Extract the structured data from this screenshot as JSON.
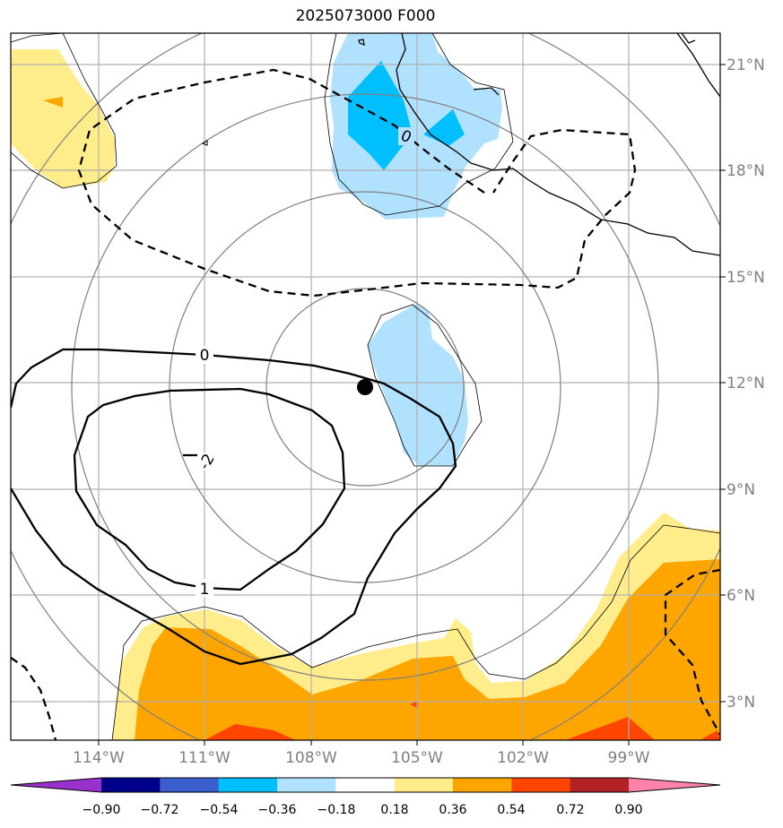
{
  "title": "2025073000 F000",
  "lat_labels": [
    "21°N",
    "18°N",
    "15°N",
    "12°N",
    "9°N",
    "6°N",
    "3°N"
  ],
  "lon_labels": [
    "114°W",
    "111°W",
    "108°W",
    "105°W",
    "102°W",
    "99°W"
  ],
  "contour_labels": [
    "0",
    "0",
    "-2",
    "1"
  ],
  "colorbar": {
    "ticks": [
      "−0.90",
      "−0.72",
      "−0.54",
      "−0.36",
      "−0.18",
      "0.18",
      "0.36",
      "0.54",
      "0.72",
      "0.90"
    ],
    "colors": [
      "#9932cc",
      "#00008b",
      "#3a5fcd",
      "#00bfff",
      "#b0e2ff",
      "#ffffff",
      "#ffec8b",
      "#ffa500",
      "#ff4500",
      "#b22222",
      "#ff82ab"
    ]
  },
  "colors": {
    "grid": "#b0b0b0",
    "range_rings": "#808080",
    "coast": "#000000",
    "light_blue": "#b0e2ff",
    "deep_sky_blue": "#00bfff",
    "light_yellow": "#ffec8b",
    "orange": "#ffa500",
    "orange_red": "#ff4500"
  },
  "storm_center": {
    "lat": 11.9,
    "lon": -106.3
  }
}
